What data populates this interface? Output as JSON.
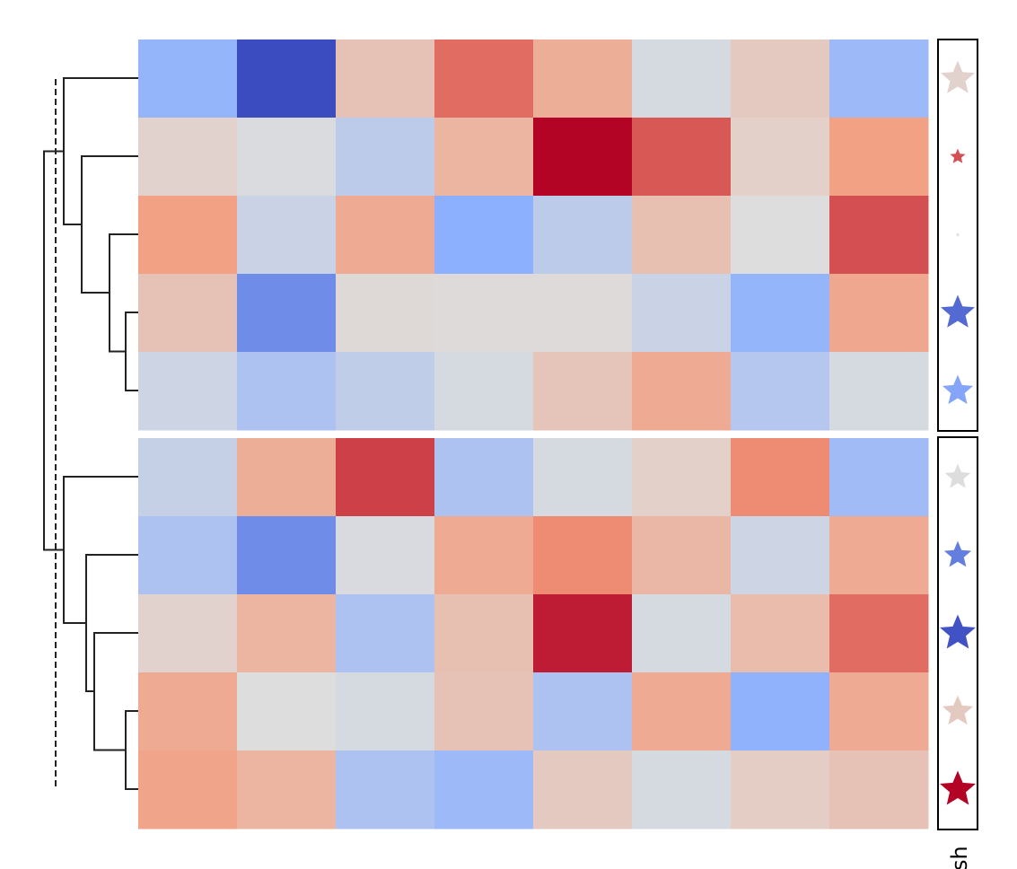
{
  "chart_data": {
    "type": "heatmap",
    "colormap": "coolwarm",
    "vlim": [
      -1,
      1
    ],
    "label": "sh",
    "values": [
      [
        -0.45,
        -1,
        0.2,
        0.65,
        0.35,
        -0.05,
        0.15,
        -0.4
      ],
      [
        0.08,
        -0.02,
        -0.2,
        0.3,
        1.0,
        0.72,
        0.1,
        0.45
      ],
      [
        0.45,
        -0.12,
        0.38,
        -0.5,
        -0.2,
        0.22,
        0.0,
        0.75
      ],
      [
        0.2,
        -0.68,
        0.03,
        0.02,
        0.02,
        -0.12,
        -0.45,
        0.4
      ],
      [
        -0.1,
        -0.3,
        -0.18,
        -0.05,
        0.18,
        0.38,
        -0.25,
        -0.05
      ],
      [
        -0.15,
        0.35,
        0.8,
        -0.3,
        -0.05,
        0.1,
        0.55,
        -0.38
      ],
      [
        -0.3,
        -0.68,
        -0.03,
        0.38,
        0.55,
        0.28,
        -0.1,
        0.38
      ],
      [
        0.08,
        0.3,
        -0.3,
        0.22,
        0.92,
        -0.05,
        0.25,
        0.65
      ],
      [
        0.38,
        0.0,
        -0.05,
        0.2,
        -0.3,
        0.38,
        -0.48,
        0.38
      ],
      [
        0.42,
        0.3,
        -0.3,
        -0.4,
        0.15,
        -0.05,
        0.12,
        0.2
      ]
    ],
    "star_values": [
      0.08,
      0.75,
      0.0,
      -0.85,
      -0.55,
      0.0,
      -0.75,
      -0.97,
      0.15,
      1.0
    ],
    "star_sizes": [
      40,
      18,
      5,
      40,
      36,
      30,
      32,
      42,
      36,
      42
    ]
  }
}
